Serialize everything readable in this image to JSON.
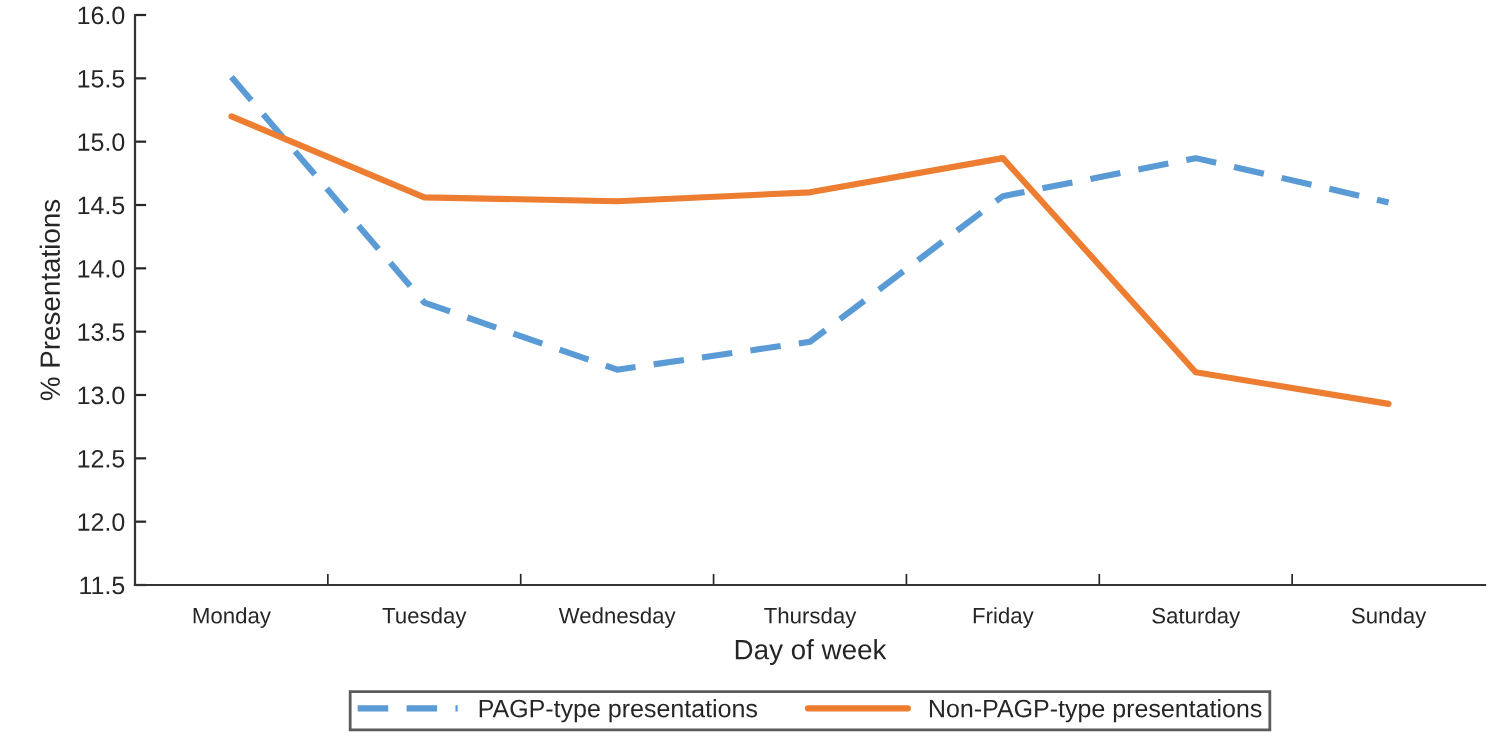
{
  "chart_data": {
    "type": "line",
    "xlabel": "Day of week",
    "ylabel": "% Presentations",
    "categories": [
      "Monday",
      "Tuesday",
      "Wednesday",
      "Thursday",
      "Friday",
      "Saturday",
      "Sunday"
    ],
    "series": [
      {
        "name": "PAGP-type presentations",
        "color": "#5b9bd5",
        "line_style": "dashed",
        "values": [
          15.51,
          13.73,
          13.2,
          13.42,
          14.57,
          14.87,
          14.52
        ]
      },
      {
        "name": "Non-PAGP-type presentations",
        "color": "#ed7d31",
        "line_style": "solid",
        "values": [
          15.2,
          14.56,
          14.53,
          14.6,
          14.87,
          13.18,
          12.93
        ]
      }
    ],
    "ylim": [
      11.5,
      16.0
    ],
    "yticks": [
      {
        "value": 11.5,
        "label": "11.5"
      },
      {
        "value": 12.0,
        "label": "12.0"
      },
      {
        "value": 12.5,
        "label": "12.5"
      },
      {
        "value": 13.0,
        "label": "13.0"
      },
      {
        "value": 13.5,
        "label": "13.5"
      },
      {
        "value": 14.0,
        "label": "14.0"
      },
      {
        "value": 14.5,
        "label": "14.5"
      },
      {
        "value": 15.0,
        "label": "15.0"
      },
      {
        "value": 15.5,
        "label": "15.5"
      },
      {
        "value": 16.0,
        "label": "16.0"
      }
    ],
    "grid": false,
    "legend": "bottom",
    "marker": "none"
  }
}
